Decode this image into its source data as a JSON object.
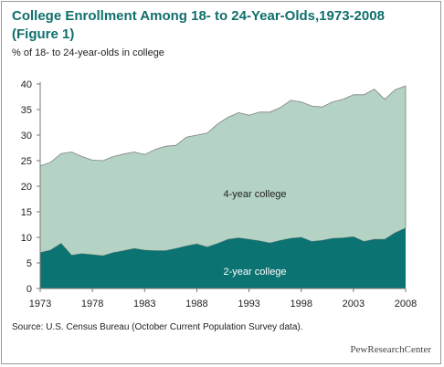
{
  "figure": {
    "title": "College Enrollment Among 18- to 24-Year-Olds,1973-2008 (Figure 1)",
    "source": "Source: U.S. Census Bureau (October Current Population Survey data).",
    "brand": "PewResearchCenter"
  },
  "chart_data": {
    "type": "area",
    "title": "College Enrollment Among 18- to 24-Year-Olds,1973-2008 (Figure 1)",
    "subtitle": "% of 18- to 24-year-olds in college",
    "ylabel": "% of 18- to 24-year-olds in college",
    "xlabel": "",
    "xlim": [
      1973,
      2008
    ],
    "ylim": [
      0,
      40
    ],
    "x_ticks": [
      1973,
      1978,
      1983,
      1988,
      1993,
      1998,
      2003,
      2008
    ],
    "y_ticks": [
      0,
      5,
      10,
      15,
      20,
      25,
      30,
      35,
      40
    ],
    "stacked": true,
    "grid": false,
    "legend": "none",
    "x": [
      1973,
      1974,
      1975,
      1976,
      1977,
      1978,
      1979,
      1980,
      1981,
      1982,
      1983,
      1984,
      1985,
      1986,
      1987,
      1988,
      1989,
      1990,
      1991,
      1992,
      1993,
      1994,
      1995,
      1996,
      1997,
      1998,
      1999,
      2000,
      2001,
      2002,
      2003,
      2004,
      2005,
      2006,
      2007,
      2008
    ],
    "series": [
      {
        "name": "2-year college",
        "color": "#0b7371",
        "values": [
          7.0,
          7.5,
          8.8,
          6.5,
          6.8,
          6.6,
          6.4,
          7.0,
          7.4,
          7.8,
          7.5,
          7.4,
          7.4,
          7.8,
          8.3,
          8.7,
          8.1,
          8.8,
          9.6,
          9.9,
          9.6,
          9.3,
          8.9,
          9.4,
          9.8,
          10.0,
          9.2,
          9.4,
          9.8,
          9.9,
          10.1,
          9.2,
          9.6,
          9.6,
          10.9,
          11.8
        ]
      },
      {
        "name": "4-year college",
        "color": "#b4d3c4",
        "values": [
          17.0,
          17.2,
          17.6,
          20.2,
          19.0,
          18.5,
          18.6,
          18.8,
          18.9,
          18.9,
          18.7,
          19.8,
          20.4,
          20.2,
          21.3,
          21.3,
          22.3,
          23.4,
          23.9,
          24.5,
          24.3,
          25.2,
          25.6,
          26.0,
          27.0,
          26.5,
          26.5,
          26.1,
          26.7,
          27.1,
          27.8,
          28.7,
          29.4,
          27.4,
          28.0,
          27.8
        ]
      }
    ],
    "annotations": [
      {
        "text": "4-year college",
        "series": "4-year college"
      },
      {
        "text": "2-year college",
        "series": "2-year college"
      }
    ]
  }
}
